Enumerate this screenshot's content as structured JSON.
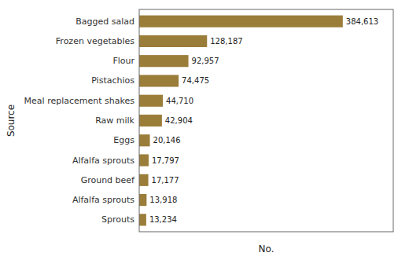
{
  "chart_data": {
    "type": "bar",
    "orientation": "horizontal",
    "categories": [
      "Sprouts",
      "Alfalfa sprouts",
      "Ground beef",
      "Alfalfa sprouts",
      "Eggs",
      "Raw milk",
      "Meal replacement shakes",
      "Pistachios",
      "Flour",
      "Frozen vegetables",
      "Bagged salad"
    ],
    "values": [
      13234,
      13918,
      17177,
      17797,
      20146,
      42904,
      44710,
      74475,
      92957,
      128187,
      384613
    ],
    "value_labels": [
      "13,234",
      "13,918",
      "17,177",
      "17,797",
      "20,146",
      "42,904",
      "44,710",
      "74,475",
      "92,957",
      "128,187",
      "384,613"
    ],
    "data_labels": true,
    "color": "#9b7d3a",
    "xlabel": "No.",
    "ylabel": "Source",
    "xlim": [
      0,
      480000
    ],
    "xticks": [],
    "tick_labels": "y"
  }
}
